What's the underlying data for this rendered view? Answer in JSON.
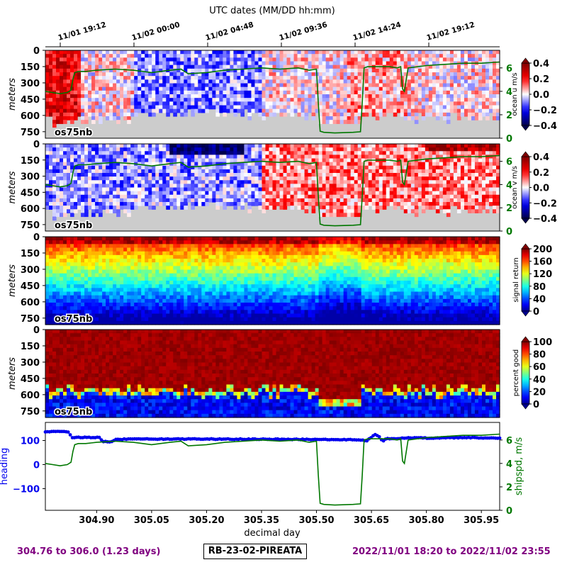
{
  "header": {
    "top_axis_label": "UTC dates (MM/DD hh:mm)",
    "date_ticks": [
      "11/01 19:12",
      "11/02 00:00",
      "11/02 04:48",
      "11/02 09:36",
      "11/02 14:24",
      "11/02 19:12"
    ]
  },
  "footer": {
    "range": "304.76 to 306.0 (1.23 days)",
    "cruise": "RB-23-02-PIREATA",
    "dates": "2022/11/01 18:20 to 2022/11/02 23:55"
  },
  "colors": {
    "shipspeed": "#007700",
    "heading": "#0000ee",
    "footer": "#800080",
    "no_data": "#cccccc"
  },
  "chart_data": [
    {
      "type": "heatmap",
      "name": "ocean-u",
      "instrument_label": "os75nb",
      "ylabel": "meters",
      "depth_ticks": [
        0,
        150,
        300,
        450,
        600,
        750
      ],
      "colorbar_label": "ocean u m/s",
      "colorbar_ticks": [
        "0.4",
        "0.2",
        "0.0",
        "−0.2",
        "−0.4"
      ],
      "colorbar_range": [
        -0.4,
        0.4
      ],
      "colormap": "seismic",
      "right_axis_ticks": [
        "6",
        "4",
        "2",
        "0"
      ],
      "right_axis_range": [
        0,
        7.5
      ]
    },
    {
      "type": "heatmap",
      "name": "ocean-v",
      "instrument_label": "os75nb",
      "ylabel": "meters",
      "depth_ticks": [
        0,
        150,
        300,
        450,
        600,
        750
      ],
      "colorbar_label": "ocean v m/s",
      "colorbar_ticks": [
        "0.4",
        "0.2",
        "0.0",
        "−0.2",
        "−0.4"
      ],
      "colorbar_range": [
        -0.4,
        0.4
      ],
      "colormap": "seismic",
      "right_axis_ticks": [
        "6",
        "4",
        "2",
        "0"
      ],
      "right_axis_range": [
        0,
        7.5
      ]
    },
    {
      "type": "heatmap",
      "name": "signal-return",
      "instrument_label": "os75nb",
      "ylabel": "meters",
      "depth_ticks": [
        0,
        150,
        300,
        450,
        600,
        750
      ],
      "colorbar_label": "signal return",
      "colorbar_ticks": [
        "200",
        "160",
        "120",
        "80",
        "40",
        "0"
      ],
      "colorbar_range": [
        0,
        200
      ],
      "colormap": "jet"
    },
    {
      "type": "heatmap",
      "name": "percent-good",
      "instrument_label": "os75nb",
      "ylabel": "meters",
      "depth_ticks": [
        0,
        150,
        300,
        450,
        600,
        750
      ],
      "colorbar_label": "percent good",
      "colorbar_ticks": [
        "100",
        "80",
        "60",
        "40",
        "20",
        "0"
      ],
      "colorbar_range": [
        0,
        100
      ],
      "colormap": "jet"
    },
    {
      "type": "line",
      "name": "heading-and-shipspeed",
      "xlabel": "decimal day",
      "x_ticks": [
        "304.90",
        "305.05",
        "305.20",
        "305.35",
        "305.50",
        "305.65",
        "305.80",
        "305.95"
      ],
      "xlim": [
        304.76,
        306.0
      ],
      "ylabel_left": "heading",
      "left_ticks": [
        "100",
        "0",
        "−100"
      ],
      "ylim_left": [
        -190,
        175
      ],
      "ylabel_right": "shipspd, m/s",
      "right_ticks": [
        "6",
        "4",
        "2",
        "0"
      ],
      "ylim_right": [
        0,
        7.5
      ],
      "series": [
        {
          "name": "heading",
          "color": "#0000ee",
          "x": [
            304.76,
            304.8,
            304.825,
            304.83,
            304.87,
            304.875,
            304.91,
            304.915,
            304.94,
            304.95,
            305.0,
            305.2,
            305.4,
            305.6,
            305.63,
            305.64,
            305.645,
            305.66,
            305.67,
            305.68,
            305.69,
            305.72,
            305.75,
            305.8,
            305.9,
            306.0
          ],
          "y": [
            137,
            137,
            136,
            113,
            113,
            112,
            112,
            95,
            94,
            104,
            106,
            106,
            105,
            103,
            100,
            100,
            108,
            124,
            120,
            95,
            107,
            108,
            111,
            110,
            112,
            110
          ]
        },
        {
          "name": "shipspeed",
          "color": "#007700",
          "x": [
            304.76,
            304.78,
            304.8,
            304.82,
            304.83,
            304.835,
            304.84,
            304.85,
            304.87,
            304.9,
            304.95,
            305.0,
            305.05,
            305.1,
            305.13,
            305.15,
            305.2,
            305.25,
            305.3,
            305.35,
            305.4,
            305.45,
            305.48,
            305.5,
            305.505,
            305.51,
            305.52,
            305.55,
            305.6,
            305.62,
            305.625,
            305.63,
            305.64,
            305.7,
            305.72,
            305.73,
            305.735,
            305.74,
            305.745,
            305.75,
            305.8,
            305.85,
            305.9,
            305.95,
            306.0
          ],
          "y": [
            4.0,
            3.9,
            3.8,
            3.9,
            4.1,
            5.0,
            5.6,
            5.7,
            5.7,
            5.8,
            5.9,
            5.8,
            5.6,
            5.8,
            5.9,
            5.5,
            5.6,
            5.8,
            5.9,
            6.0,
            5.9,
            6.0,
            5.8,
            5.9,
            3.0,
            0.6,
            0.5,
            0.45,
            0.5,
            0.55,
            3.0,
            6.0,
            6.1,
            6.1,
            6.0,
            6.1,
            4.2,
            4.0,
            5.0,
            6.0,
            6.2,
            6.3,
            6.4,
            6.4,
            6.5
          ]
        }
      ]
    }
  ]
}
